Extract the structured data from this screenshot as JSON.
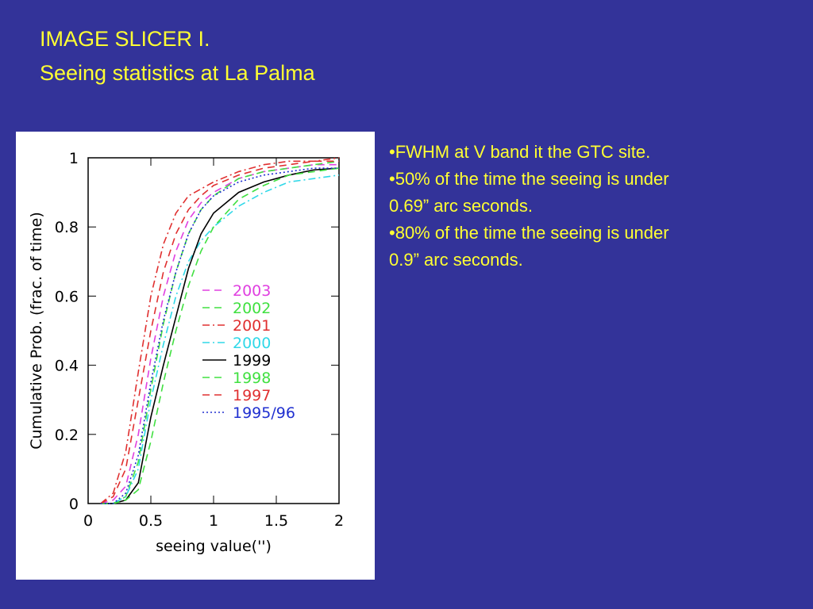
{
  "slide": {
    "title": [
      "IMAGE SLICER I.",
      "Seeing statistics at La Palma"
    ],
    "bullets": [
      [
        "•FWHM at V band it the GTC site."
      ],
      [
        "•50% of the time the seeing is under",
        "0.69” arc seconds."
      ],
      [
        "•80% of the time the seeing is under",
        "0.9” arc seconds."
      ]
    ]
  },
  "chart_data": {
    "type": "line",
    "x_label": "seeing value('')",
    "y_label": "Cumulative Prob. (frac. of time)",
    "xlim": [
      0,
      2
    ],
    "xticks": [
      0,
      0.5,
      1,
      1.5,
      2
    ],
    "ylim": [
      0,
      1
    ],
    "yticks": [
      0,
      0.2,
      0.4,
      0.6,
      0.8,
      1
    ],
    "x": [
      0.1,
      0.2,
      0.3,
      0.4,
      0.5,
      0.6,
      0.7,
      0.8,
      0.9,
      1.0,
      1.2,
      1.4,
      1.6,
      1.8,
      2.0
    ],
    "series": [
      {
        "name": "2003",
        "color": "#e040e0",
        "style": "dashed",
        "values": [
          0,
          0.01,
          0.05,
          0.2,
          0.42,
          0.6,
          0.73,
          0.82,
          0.87,
          0.9,
          0.94,
          0.96,
          0.97,
          0.98,
          0.98
        ]
      },
      {
        "name": "2002",
        "color": "#40e040",
        "style": "dashed",
        "values": [
          0,
          0,
          0.02,
          0.12,
          0.33,
          0.52,
          0.67,
          0.78,
          0.85,
          0.89,
          0.94,
          0.96,
          0.97,
          0.98,
          0.99
        ]
      },
      {
        "name": "2001",
        "color": "#e03030",
        "style": "dashdot",
        "values": [
          0,
          0.03,
          0.15,
          0.38,
          0.6,
          0.75,
          0.84,
          0.89,
          0.91,
          0.93,
          0.96,
          0.98,
          0.99,
          0.99,
          1
        ]
      },
      {
        "name": "2000",
        "color": "#30d8e8",
        "style": "dashdot",
        "values": [
          0,
          0,
          0.02,
          0.1,
          0.3,
          0.46,
          0.6,
          0.7,
          0.76,
          0.8,
          0.86,
          0.9,
          0.93,
          0.94,
          0.95
        ]
      },
      {
        "name": "1999",
        "color": "#000000",
        "style": "solid",
        "values": [
          0,
          0,
          0.01,
          0.06,
          0.25,
          0.4,
          0.54,
          0.68,
          0.78,
          0.84,
          0.9,
          0.93,
          0.95,
          0.965,
          0.97
        ]
      },
      {
        "name": "1998",
        "color": "#40e040",
        "style": "dashed",
        "values": [
          0,
          0,
          0.01,
          0.04,
          0.18,
          0.35,
          0.5,
          0.63,
          0.73,
          0.8,
          0.88,
          0.92,
          0.95,
          0.96,
          0.97
        ]
      },
      {
        "name": "1997",
        "color": "#e03030",
        "style": "dashed",
        "values": [
          0,
          0.02,
          0.1,
          0.3,
          0.5,
          0.67,
          0.78,
          0.85,
          0.89,
          0.92,
          0.95,
          0.97,
          0.98,
          0.99,
          0.99
        ]
      },
      {
        "name": "1995/96",
        "color": "#2030d0",
        "style": "dotted",
        "values": [
          0,
          0,
          0.03,
          0.14,
          0.35,
          0.53,
          0.67,
          0.78,
          0.85,
          0.89,
          0.93,
          0.95,
          0.96,
          0.97,
          0.97
        ]
      }
    ]
  }
}
